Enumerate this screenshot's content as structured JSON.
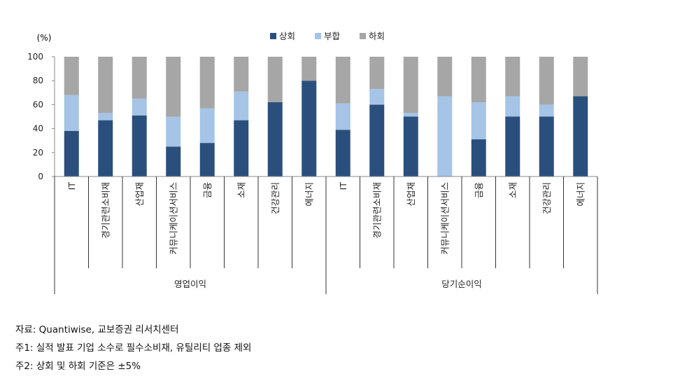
{
  "chart_data": {
    "type": "bar",
    "stacked": true,
    "unit_label": "(%)",
    "ylim": [
      0,
      100
    ],
    "yticks": [
      0,
      20,
      40,
      60,
      80,
      100
    ],
    "legend_position": "top-center",
    "groups": [
      {
        "name": "영업이익",
        "categories": [
          "IT",
          "경기관련소비재",
          "산업재",
          "커뮤니케이션서비스",
          "금융",
          "소재",
          "건강관리",
          "에너지"
        ]
      },
      {
        "name": "당기순이익",
        "categories": [
          "IT",
          "경기관련소비재",
          "산업재",
          "커뮤니케이션서비스",
          "금융",
          "소재",
          "건강관리",
          "에너지"
        ]
      }
    ],
    "series": [
      {
        "name": "상회",
        "color": "#2b4f7d",
        "values": [
          38,
          47,
          51,
          25,
          28,
          47,
          62,
          80,
          39,
          60,
          50,
          0,
          31,
          50,
          50,
          67
        ]
      },
      {
        "name": "부합",
        "color": "#a5c4e6",
        "values": [
          30,
          6,
          14,
          25,
          29,
          24,
          0,
          0,
          22,
          13,
          3,
          67,
          31,
          17,
          10,
          0
        ]
      },
      {
        "name": "하회",
        "color": "#a6a6a6",
        "values": [
          32,
          47,
          35,
          50,
          43,
          29,
          38,
          20,
          39,
          27,
          47,
          33,
          38,
          33,
          40,
          33
        ]
      }
    ]
  },
  "notes": {
    "source": "자료: Quantiwise, 교보증권 리서치센터",
    "note1": "주1: 실적 발표 기업 소수로 필수소비재, 유틸리티 업종 제외",
    "note2": "주2: 상회 및 하회 기준은 ±5%"
  }
}
